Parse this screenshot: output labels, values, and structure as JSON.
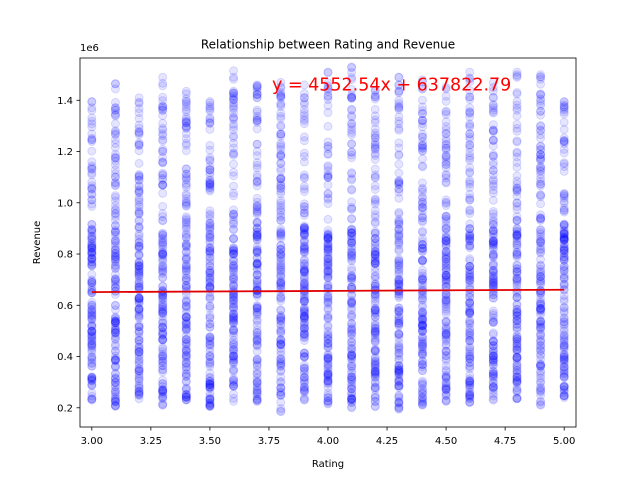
{
  "chart_data": {
    "type": "scatter",
    "title": "Relationship between Rating and Revenue",
    "xlabel": "Rating",
    "ylabel": "Revenue",
    "y_offset_label": "1e6",
    "xlim": [
      2.95,
      5.05
    ],
    "ylim": [
      125000,
      1565000
    ],
    "x_ticks": [
      3.0,
      3.25,
      3.5,
      3.75,
      4.0,
      4.25,
      4.5,
      4.75,
      5.0
    ],
    "x_tick_labels": [
      "3.00",
      "3.25",
      "3.50",
      "3.75",
      "4.00",
      "4.25",
      "4.50",
      "4.75",
      "5.00"
    ],
    "y_ticks": [
      200000,
      400000,
      600000,
      800000,
      1000000,
      1200000,
      1400000
    ],
    "y_tick_labels": [
      "0.2",
      "0.4",
      "0.6",
      "0.8",
      "1.0",
      "1.2",
      "1.4"
    ],
    "grid": false,
    "marker_color": "#0000ff",
    "marker_alpha": 0.1,
    "line_color": "#e00000",
    "annotation": {
      "text": "y = 4552.54x + 637822.79",
      "color": "#ff0000"
    },
    "regression": {
      "slope": 4552.54,
      "intercept": 637822.79,
      "x_range": [
        3.0,
        5.0
      ]
    },
    "rating_levels": [
      3.0,
      3.1,
      3.2,
      3.3,
      3.4,
      3.5,
      3.6,
      3.7,
      3.8,
      3.9,
      4.0,
      4.1,
      4.2,
      4.3,
      4.4,
      4.5,
      4.6,
      4.7,
      4.8,
      4.9,
      5.0
    ],
    "revenue_min": [
      230000,
      205000,
      235000,
      210000,
      230000,
      205000,
      225000,
      225000,
      185000,
      230000,
      215000,
      200000,
      205000,
      195000,
      210000,
      225000,
      220000,
      230000,
      235000,
      210000,
      240000
    ],
    "revenue_max": [
      1395000,
      1465000,
      1410000,
      1490000,
      1435000,
      1395000,
      1515000,
      1460000,
      1470000,
      1460000,
      1510000,
      1530000,
      1440000,
      1490000,
      1480000,
      1450000,
      1510000,
      1470000,
      1510000,
      1500000,
      1395000
    ],
    "points_per_rating": 150
  }
}
